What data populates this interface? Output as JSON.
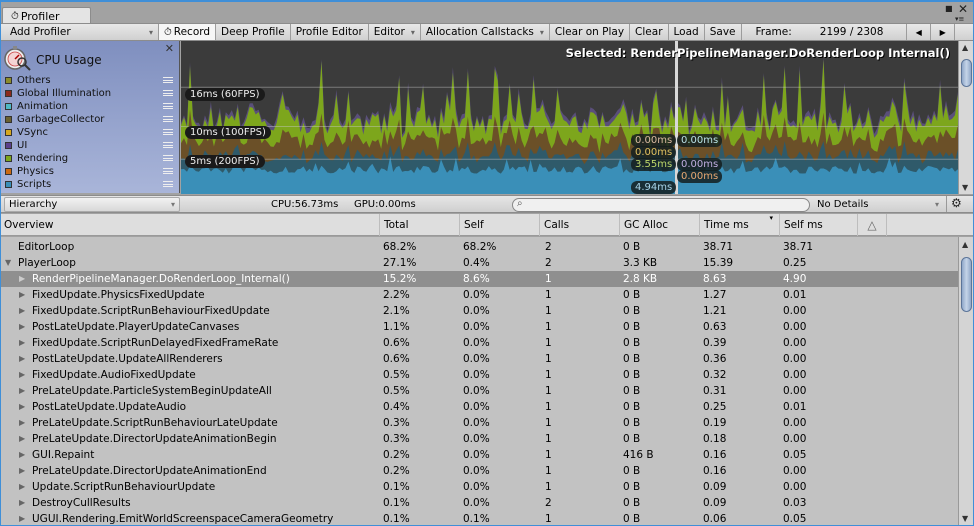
{
  "window": {
    "tab_title": "Profiler",
    "maximize_icon": "■",
    "close_icon": "✕",
    "menu_icon": "▾≡"
  },
  "toolbar": {
    "add_profiler": "Add Profiler",
    "record": "Record",
    "deep_profile": "Deep Profile",
    "profile_editor": "Profile Editor",
    "editor": "Editor",
    "allocation_callstacks": "Allocation Callstacks",
    "clear_on_play": "Clear on Play",
    "clear": "Clear",
    "load": "Load",
    "save": "Save",
    "frame_label": "Frame:",
    "frame_value": "2199 / 2308",
    "prev_frame": "◀",
    "next_frame": "▶"
  },
  "legend": {
    "title": "CPU Usage",
    "close": "✕",
    "items": [
      {
        "label": "Others",
        "color": "#8c8c2a"
      },
      {
        "label": "Global Illumination",
        "color": "#8c2a1c"
      },
      {
        "label": "Animation",
        "color": "#4fb8c4"
      },
      {
        "label": "GarbageCollector",
        "color": "#6b6130"
      },
      {
        "label": "VSync",
        "color": "#d6a820"
      },
      {
        "label": "UI",
        "color": "#5a3f8c"
      },
      {
        "label": "Rendering",
        "color": "#7da61c"
      },
      {
        "label": "Physics",
        "color": "#cc6a12"
      },
      {
        "label": "Scripts",
        "color": "#3a8fb8"
      }
    ]
  },
  "chart": {
    "selected_text": "Selected: RenderPipelineManager.DoRenderLoop  Internal()",
    "fps_lines": [
      {
        "label": "16ms (60FPS)",
        "ms": 16
      },
      {
        "label": "10ms (100FPS)",
        "ms": 10
      },
      {
        "label": "5ms (200FPS)",
        "ms": 5
      }
    ],
    "left_values": [
      {
        "text": "0.00ms",
        "color": "#d9b9a0"
      },
      {
        "text": "0.00ms",
        "color": "#e0c060"
      },
      {
        "text": "3.55ms",
        "color": "#bcd66a"
      },
      {
        "text": "4.94ms",
        "color": "#a8d4e8"
      }
    ],
    "right_values": [
      {
        "text": "0.00ms",
        "color": "#b8e0e6"
      },
      {
        "text": "0.00ms",
        "color": "#c0aee0"
      },
      {
        "text": "0.00ms",
        "color": "#e8a870"
      }
    ],
    "colors": {
      "background": "#3b3b3b",
      "scripts": "#3a8fb8",
      "scripts_dark": "#2f5a6a",
      "physics_gc": "#6b5028",
      "rendering": "#7da61c",
      "ui": "#5a4f7a"
    }
  },
  "hierarchy_bar": {
    "view_mode": "Hierarchy",
    "cpu": "CPU:56.73ms",
    "gpu": "GPU:0.00ms",
    "search_placeholder": "",
    "details": "No Details",
    "search_icon": "🔍",
    "gear_icon": "⚙"
  },
  "columns": [
    "Overview",
    "Total",
    "Self",
    "Calls",
    "GC Alloc",
    "Time ms",
    "Self ms"
  ],
  "rows": [
    {
      "name": "EditorLoop",
      "depth": 0,
      "expander": "",
      "total": "68.2%",
      "self": "68.2%",
      "calls": "2",
      "gc": "0 B",
      "time": "38.71",
      "self_ms": "38.71"
    },
    {
      "name": "PlayerLoop",
      "depth": 0,
      "expander": "▼",
      "total": "27.1%",
      "self": "0.4%",
      "calls": "2",
      "gc": "3.3 KB",
      "time": "15.39",
      "self_ms": "0.25"
    },
    {
      "name": "RenderPipelineManager.DoRenderLoop_Internal()",
      "depth": 1,
      "expander": "▶",
      "total": "15.2%",
      "self": "8.6%",
      "calls": "1",
      "gc": "2.8 KB",
      "time": "8.63",
      "self_ms": "4.90",
      "selected": true
    },
    {
      "name": "FixedUpdate.PhysicsFixedUpdate",
      "depth": 1,
      "expander": "▶",
      "total": "2.2%",
      "self": "0.0%",
      "calls": "1",
      "gc": "0 B",
      "time": "1.27",
      "self_ms": "0.01"
    },
    {
      "name": "FixedUpdate.ScriptRunBehaviourFixedUpdate",
      "depth": 1,
      "expander": "▶",
      "total": "2.1%",
      "self": "0.0%",
      "calls": "1",
      "gc": "0 B",
      "time": "1.21",
      "self_ms": "0.00"
    },
    {
      "name": "PostLateUpdate.PlayerUpdateCanvases",
      "depth": 1,
      "expander": "▶",
      "total": "1.1%",
      "self": "0.0%",
      "calls": "1",
      "gc": "0 B",
      "time": "0.63",
      "self_ms": "0.00"
    },
    {
      "name": "FixedUpdate.ScriptRunDelayedFixedFrameRate",
      "depth": 1,
      "expander": "▶",
      "total": "0.6%",
      "self": "0.0%",
      "calls": "1",
      "gc": "0 B",
      "time": "0.39",
      "self_ms": "0.00"
    },
    {
      "name": "PostLateUpdate.UpdateAllRenderers",
      "depth": 1,
      "expander": "▶",
      "total": "0.6%",
      "self": "0.0%",
      "calls": "1",
      "gc": "0 B",
      "time": "0.36",
      "self_ms": "0.00"
    },
    {
      "name": "FixedUpdate.AudioFixedUpdate",
      "depth": 1,
      "expander": "▶",
      "total": "0.5%",
      "self": "0.0%",
      "calls": "1",
      "gc": "0 B",
      "time": "0.32",
      "self_ms": "0.00"
    },
    {
      "name": "PreLateUpdate.ParticleSystemBeginUpdateAll",
      "depth": 1,
      "expander": "▶",
      "total": "0.5%",
      "self": "0.0%",
      "calls": "1",
      "gc": "0 B",
      "time": "0.31",
      "self_ms": "0.00"
    },
    {
      "name": "PostLateUpdate.UpdateAudio",
      "depth": 1,
      "expander": "▶",
      "total": "0.4%",
      "self": "0.0%",
      "calls": "1",
      "gc": "0 B",
      "time": "0.25",
      "self_ms": "0.01"
    },
    {
      "name": "PreLateUpdate.ScriptRunBehaviourLateUpdate",
      "depth": 1,
      "expander": "▶",
      "total": "0.3%",
      "self": "0.0%",
      "calls": "1",
      "gc": "0 B",
      "time": "0.19",
      "self_ms": "0.00"
    },
    {
      "name": "PreLateUpdate.DirectorUpdateAnimationBegin",
      "depth": 1,
      "expander": "▶",
      "total": "0.3%",
      "self": "0.0%",
      "calls": "1",
      "gc": "0 B",
      "time": "0.18",
      "self_ms": "0.00"
    },
    {
      "name": "GUI.Repaint",
      "depth": 1,
      "expander": "▶",
      "total": "0.2%",
      "self": "0.0%",
      "calls": "1",
      "gc": "416 B",
      "time": "0.16",
      "self_ms": "0.05"
    },
    {
      "name": "PreLateUpdate.DirectorUpdateAnimationEnd",
      "depth": 1,
      "expander": "▶",
      "total": "0.2%",
      "self": "0.0%",
      "calls": "1",
      "gc": "0 B",
      "time": "0.16",
      "self_ms": "0.00"
    },
    {
      "name": "Update.ScriptRunBehaviourUpdate",
      "depth": 1,
      "expander": "▶",
      "total": "0.1%",
      "self": "0.0%",
      "calls": "1",
      "gc": "0 B",
      "time": "0.09",
      "self_ms": "0.00"
    },
    {
      "name": "DestroyCullResults",
      "depth": 1,
      "expander": "▶",
      "total": "0.1%",
      "self": "0.0%",
      "calls": "2",
      "gc": "0 B",
      "time": "0.09",
      "self_ms": "0.03"
    },
    {
      "name": "UGUI.Rendering.EmitWorldScreenspaceCameraGeometry",
      "depth": 1,
      "expander": "▶",
      "total": "0.1%",
      "self": "0.1%",
      "calls": "1",
      "gc": "0 B",
      "time": "0.06",
      "self_ms": "0.05"
    }
  ]
}
